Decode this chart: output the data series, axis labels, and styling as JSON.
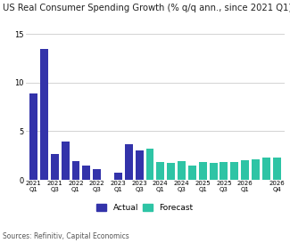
{
  "title": "US Real Consumer Spending Growth (% q/q ann., since 2021 Q1)",
  "source": "Sources: Refinitiv, Capital Economics",
  "x_tick_labels": [
    "2021\nQ1",
    "2021\nQ3",
    "2022\nQ1",
    "2022\nQ3",
    "2023\nQ1",
    "2023\nQ3",
    "2024\nQ1",
    "2024\nQ3",
    "2025\nQ1",
    "2025\nQ3",
    "2026\nQ1",
    "2026\nQ4"
  ],
  "x_tick_positions": [
    0,
    2,
    4,
    6,
    8,
    10,
    12,
    14,
    16,
    18,
    20,
    23
  ],
  "values": [
    8.9,
    13.5,
    2.7,
    3.9,
    1.9,
    1.5,
    1.1,
    null,
    0.7,
    3.7,
    3.0,
    3.2,
    1.8,
    1.7,
    1.9,
    1.5,
    1.8,
    1.7,
    1.8,
    1.8,
    2.0,
    2.1,
    2.3,
    2.3
  ],
  "is_forecast": [
    false,
    false,
    false,
    false,
    false,
    false,
    false,
    false,
    false,
    false,
    false,
    true,
    true,
    true,
    true,
    true,
    true,
    true,
    true,
    true,
    true,
    true,
    true,
    true
  ],
  "actual_color": "#3333aa",
  "forecast_color": "#2ec4a5",
  "ylim": [
    0,
    15
  ],
  "yticks": [
    0,
    5,
    10,
    15
  ],
  "grid_color": "#cccccc",
  "title_fontsize": 7.2,
  "source_fontsize": 5.5,
  "legend_actual": "Actual",
  "legend_forecast": "Forecast"
}
